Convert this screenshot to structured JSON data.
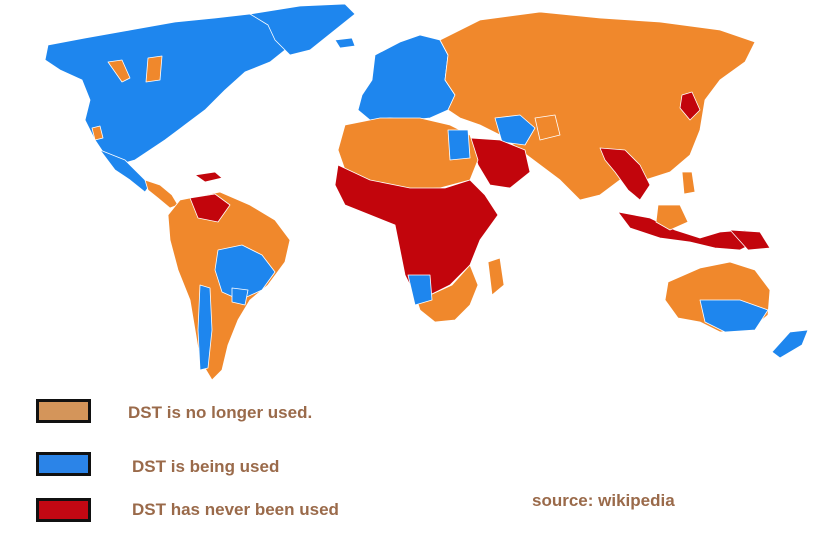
{
  "colors": {
    "no_longer_used": "#f0882c",
    "being_used": "#1e86ee",
    "never_used": "#c2050c",
    "swatch_no_longer": "#d4955a",
    "swatch_being": "#2b84e8",
    "swatch_never": "#c20813",
    "label_text": "#9a6a4a",
    "borders": "#ffffff"
  },
  "legend": {
    "no_longer_used": "DST is no longer used.",
    "being_used": "DST is being used",
    "never_used": "DST has never been used"
  },
  "source": "source: wikipedia"
}
